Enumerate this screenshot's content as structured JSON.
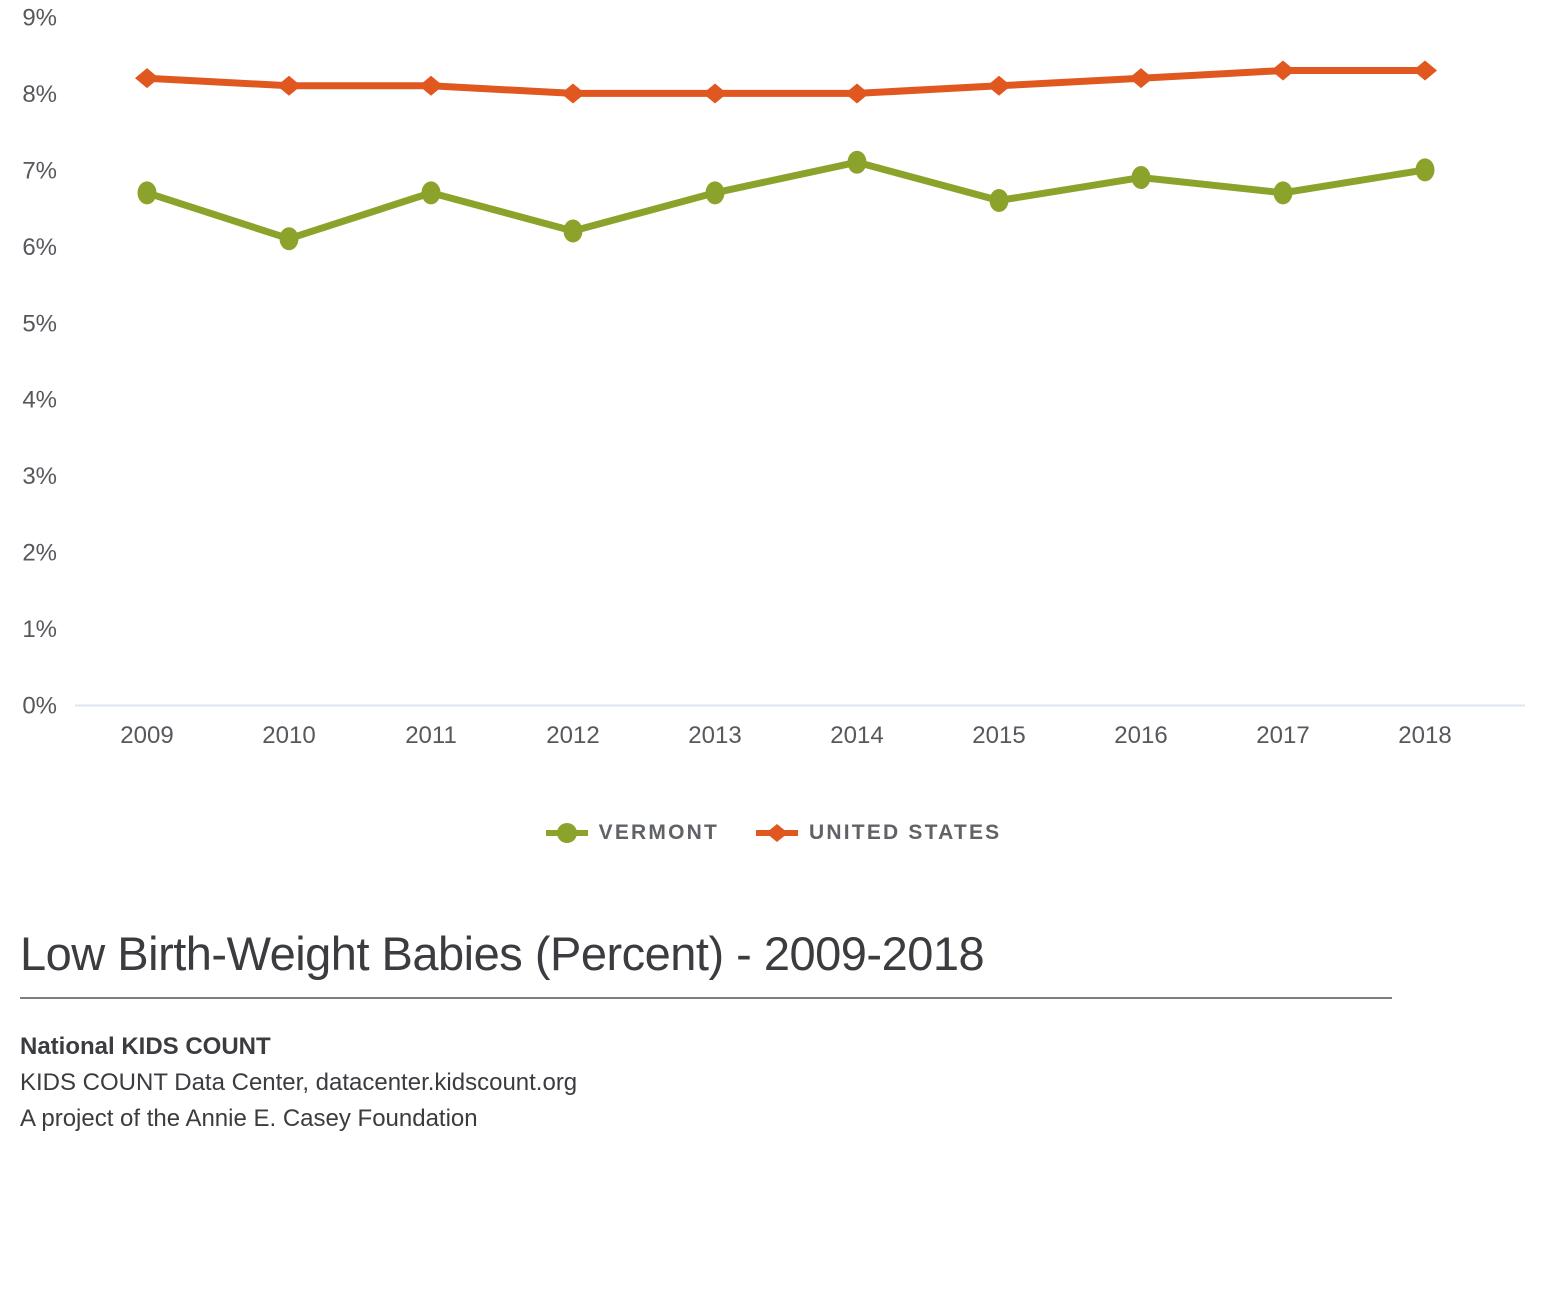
{
  "title": "Low Birth-Weight Babies (Percent) - 2009-2018",
  "footer": {
    "line1": "National KIDS COUNT",
    "line2": "KIDS COUNT Data Center, datacenter.kidscount.org",
    "line3": "A project of the Annie E. Casey Foundation"
  },
  "colors": {
    "vermont": "#8CA32B",
    "united_states": "#E0571F",
    "axis_line": "#DCE6EF",
    "axis_text": "#55585D",
    "legend_text": "#5F6266",
    "title_text": "#3B3C40",
    "divider": "#7E7E7E"
  },
  "chart_data": {
    "type": "line",
    "title": "Low Birth-Weight Babies (Percent) - 2009-2018",
    "xlabel": "",
    "ylabel": "",
    "x": [
      2009,
      2010,
      2011,
      2012,
      2013,
      2014,
      2015,
      2016,
      2017,
      2018
    ],
    "series": [
      {
        "name": "VERMONT",
        "marker": "circle",
        "color": "#8CA32B",
        "values": [
          6.7,
          6.1,
          6.7,
          6.2,
          6.7,
          7.1,
          6.6,
          6.9,
          6.7,
          7.0
        ]
      },
      {
        "name": "UNITED STATES",
        "marker": "diamond",
        "color": "#E0571F",
        "values": [
          8.2,
          8.1,
          8.1,
          8.0,
          8.0,
          8.0,
          8.1,
          8.2,
          8.3,
          8.3
        ]
      }
    ],
    "ylim": [
      0,
      9.2
    ],
    "yticks": [
      {
        "value": 0,
        "label": "0%"
      },
      {
        "value": 1,
        "label": "1%"
      },
      {
        "value": 2,
        "label": "2%"
      },
      {
        "value": 3,
        "label": "3%"
      },
      {
        "value": 4,
        "label": "4%"
      },
      {
        "value": 5,
        "label": "5%"
      },
      {
        "value": 6,
        "label": "6%"
      },
      {
        "value": 7,
        "label": "7%"
      },
      {
        "value": 8,
        "label": "8%"
      },
      {
        "value": 9,
        "label": "9%"
      }
    ],
    "grid": false,
    "legend_position": "bottom"
  }
}
